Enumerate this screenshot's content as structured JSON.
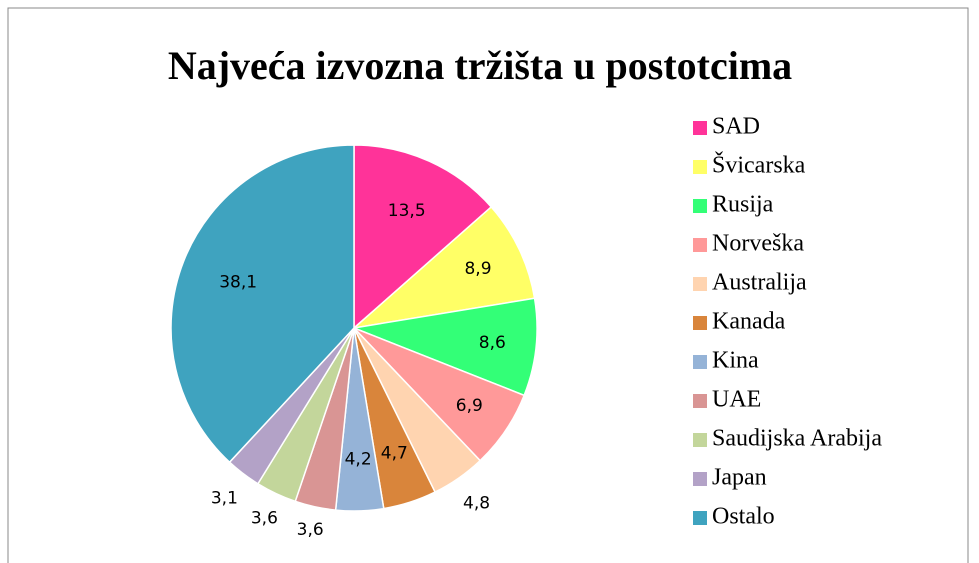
{
  "chart_data": {
    "type": "pie",
    "title": "Najveća izvozna tržišta u postotcima",
    "categories": [
      "SAD",
      "Švicarska",
      "Rusija",
      "Norveška",
      "Australija",
      "Kanada",
      "Kina",
      "UAE",
      "Saudijska Arabija",
      "Japan",
      "Ostalo"
    ],
    "values": [
      13.5,
      8.9,
      8.6,
      6.9,
      4.8,
      4.7,
      4.2,
      3.6,
      3.6,
      3.1,
      38.1
    ],
    "value_labels": [
      "13,5",
      "8,9",
      "8,6",
      "6,9",
      "4,8",
      "4,7",
      "4,2",
      "3,6",
      "3,6",
      "3,1",
      "38,1"
    ],
    "colors": [
      "#ff3399",
      "#ffff66",
      "#33ff77",
      "#ff9999",
      "#ffd4b0",
      "#d9853b",
      "#95b3d7",
      "#d99594",
      "#c3d69b",
      "#b3a2c7",
      "#3fa3bf"
    ],
    "legend": "right"
  }
}
